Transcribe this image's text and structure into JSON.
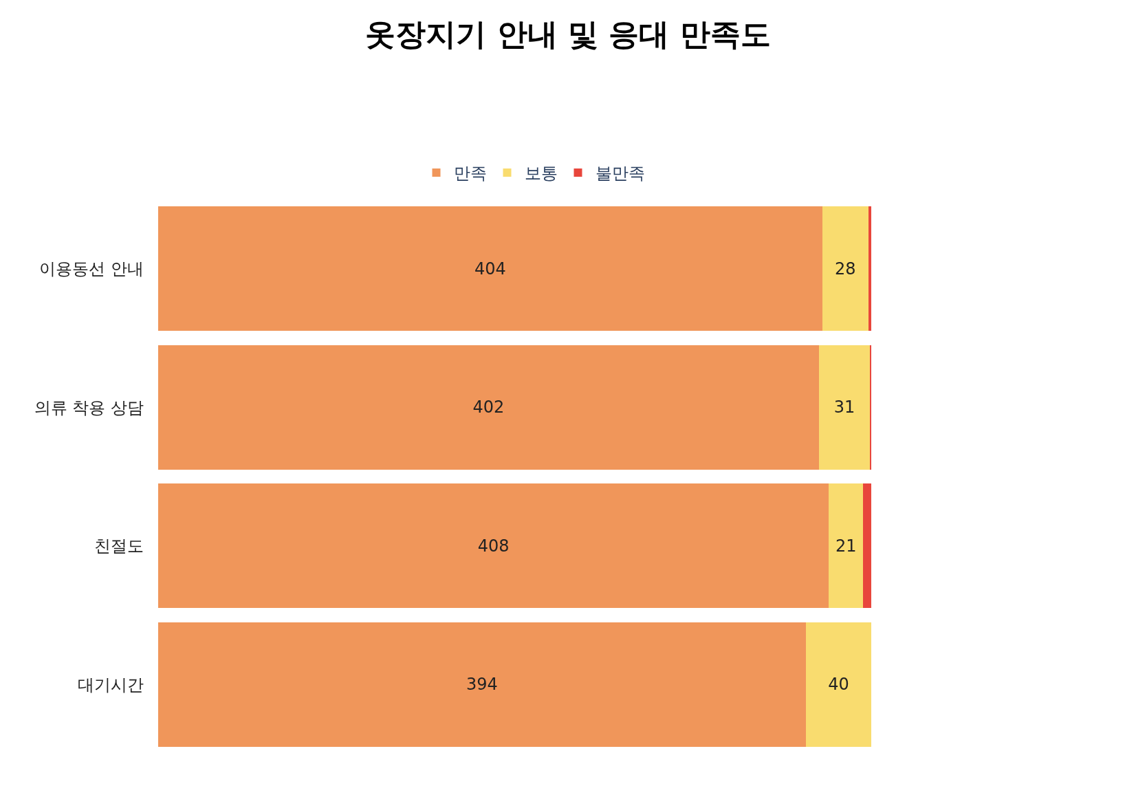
{
  "chart_data": {
    "type": "bar",
    "title": "옷장지기 안내 및 응대 만족도",
    "orientation": "horizontal",
    "stacked": true,
    "categories": [
      "이용동선 안내",
      "의류 착용 상담",
      "친절도",
      "대기시간"
    ],
    "series": [
      {
        "name": "만족",
        "color": "#f0965a",
        "values": [
          404,
          402,
          408,
          394
        ],
        "value_labels": [
          "404",
          "402",
          "408",
          "394"
        ]
      },
      {
        "name": "보통",
        "color": "#f9dc6f",
        "values": [
          28,
          31,
          21,
          40
        ],
        "value_labels": [
          "28",
          "31",
          "21",
          "40"
        ]
      },
      {
        "name": "불만족",
        "color": "#e8463c",
        "values": [
          2,
          1,
          5,
          0
        ],
        "value_labels": [
          null,
          null,
          null,
          null
        ]
      }
    ],
    "legend": "top"
  }
}
